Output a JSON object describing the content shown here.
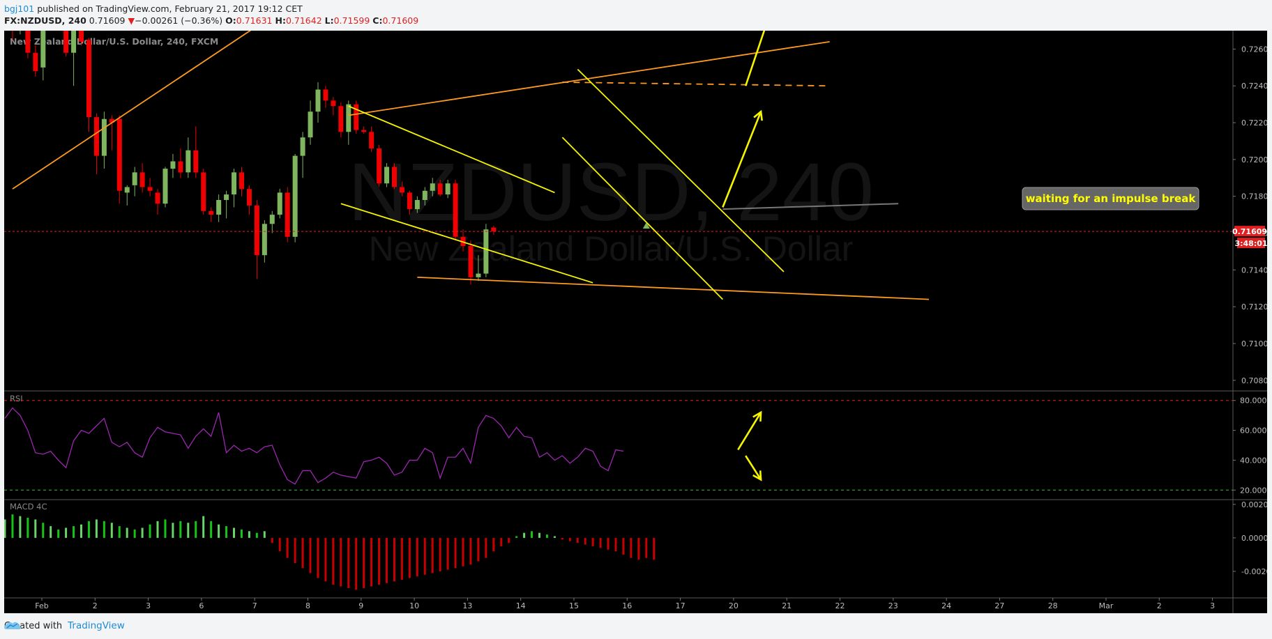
{
  "header": {
    "user": "bgj101",
    "published": "published on TradingView.com, February 21, 2017 19:12 CET",
    "symbol": "FX:NZDUSD, 240",
    "last": "0.71609",
    "change_arrow": "▼",
    "change": "−0.00261 (−0.36%)",
    "open_label": "O:",
    "open": "0.71631",
    "high_label": "H:",
    "high": "0.71642",
    "low_label": "L:",
    "low": "0.71599",
    "close_label": "C:",
    "close": "0.71609"
  },
  "footer": {
    "created_with": "Created with",
    "brand": "TradingView",
    "logo_icon": "tradingview-cloud-icon"
  },
  "colors": {
    "up": "#7fb55f",
    "down": "#f00000",
    "trend_orange": "#ff9a1f",
    "channel_yellow": "#f5f500",
    "rsi_line": "#9c27b0",
    "macd_up": "#16c416",
    "macd_up_light": "#6ad46a",
    "macd_down": "#c80000"
  },
  "chart_data": {
    "type": "candlestick",
    "title": "New Zealand Dollar/U.S. Dollar, 240, FXCM",
    "watermark_symbol": "NZDUSD, 240",
    "watermark_name": "New Zealand Dollar/U.S. Dollar",
    "annotation": "waiting for an impulse break",
    "price_axis": {
      "ticks": [
        "0.72600",
        "0.72400",
        "0.72200",
        "0.72000",
        "0.71800",
        "0.71600",
        "0.71400",
        "0.71200",
        "0.71000",
        "0.70800"
      ],
      "range": [
        0.7075,
        0.727
      ]
    },
    "last_price_label": "0.71609",
    "countdown_label": "3:48:01",
    "time_axis": [
      "Feb",
      "2",
      "3",
      "6",
      "7",
      "8",
      "9",
      "10",
      "13",
      "14",
      "15",
      "16",
      "17",
      "20",
      "21",
      "22",
      "23",
      "24",
      "27",
      "28",
      "Mar",
      "2",
      "3"
    ],
    "candles": [
      [
        0.7282,
        0.7285,
        0.7265,
        0.7273
      ],
      [
        0.7275,
        0.7284,
        0.7268,
        0.7279
      ],
      [
        0.7279,
        0.7281,
        0.7255,
        0.7258
      ],
      [
        0.7258,
        0.7262,
        0.7245,
        0.7248
      ],
      [
        0.725,
        0.729,
        0.7243,
        0.7285
      ],
      [
        0.7285,
        0.7286,
        0.7285,
        0.7286
      ],
      [
        0.7286,
        0.7288,
        0.7272,
        0.7278
      ],
      [
        0.7271,
        0.7276,
        0.7256,
        0.7258
      ],
      [
        0.7258,
        0.7282,
        0.724,
        0.7276
      ],
      [
        0.7285,
        0.7288,
        0.7262,
        0.7264
      ],
      [
        0.7265,
        0.7266,
        0.7215,
        0.7223
      ],
      [
        0.7223,
        0.7225,
        0.7192,
        0.7202
      ],
      [
        0.7202,
        0.7226,
        0.7195,
        0.7222
      ],
      [
        0.7222,
        0.7224,
        0.7205,
        0.722
      ],
      [
        0.7222,
        0.7224,
        0.7176,
        0.7183
      ],
      [
        0.7182,
        0.7186,
        0.7175,
        0.7185
      ],
      [
        0.7186,
        0.7196,
        0.718,
        0.7193
      ],
      [
        0.7193,
        0.7198,
        0.7182,
        0.7185
      ],
      [
        0.7185,
        0.719,
        0.718,
        0.7183
      ],
      [
        0.7182,
        0.7184,
        0.717,
        0.7176
      ],
      [
        0.7176,
        0.7196,
        0.7174,
        0.7195
      ],
      [
        0.7195,
        0.7203,
        0.719,
        0.7199
      ],
      [
        0.7199,
        0.7206,
        0.719,
        0.7193
      ],
      [
        0.7193,
        0.7212,
        0.719,
        0.7205
      ],
      [
        0.7205,
        0.7218,
        0.719,
        0.7193
      ],
      [
        0.7193,
        0.7195,
        0.717,
        0.7172
      ],
      [
        0.7172,
        0.7174,
        0.7166,
        0.717
      ],
      [
        0.717,
        0.7181,
        0.7166,
        0.7178
      ],
      [
        0.7178,
        0.7183,
        0.7168,
        0.7181
      ],
      [
        0.7181,
        0.7195,
        0.7174,
        0.7193
      ],
      [
        0.7193,
        0.7196,
        0.718,
        0.7184
      ],
      [
        0.7184,
        0.7186,
        0.717,
        0.7175
      ],
      [
        0.7175,
        0.7178,
        0.7135,
        0.7148
      ],
      [
        0.7148,
        0.7167,
        0.7144,
        0.7165
      ],
      [
        0.7165,
        0.7172,
        0.716,
        0.717
      ],
      [
        0.717,
        0.7184,
        0.7168,
        0.7182
      ],
      [
        0.7182,
        0.7185,
        0.7155,
        0.7158
      ],
      [
        0.7158,
        0.7203,
        0.7155,
        0.7202
      ],
      [
        0.7202,
        0.7215,
        0.719,
        0.7212
      ],
      [
        0.7212,
        0.7232,
        0.7208,
        0.7226
      ],
      [
        0.7226,
        0.7242,
        0.722,
        0.7238
      ],
      [
        0.7238,
        0.724,
        0.7228,
        0.7232
      ],
      [
        0.7232,
        0.7234,
        0.7224,
        0.7229
      ],
      [
        0.7229,
        0.7231,
        0.7212,
        0.7215
      ],
      [
        0.7215,
        0.7232,
        0.7208,
        0.723
      ],
      [
        0.723,
        0.7232,
        0.7214,
        0.7216
      ],
      [
        0.7216,
        0.7218,
        0.7214,
        0.7215
      ],
      [
        0.7215,
        0.7218,
        0.7204,
        0.7206
      ],
      [
        0.7206,
        0.7208,
        0.7185,
        0.7187
      ],
      [
        0.7187,
        0.7198,
        0.7185,
        0.7196
      ],
      [
        0.7196,
        0.7198,
        0.7184,
        0.7185
      ],
      [
        0.7185,
        0.7188,
        0.718,
        0.7182
      ],
      [
        0.7182,
        0.7183,
        0.717,
        0.7173
      ],
      [
        0.7173,
        0.718,
        0.7171,
        0.7178
      ],
      [
        0.7178,
        0.7185,
        0.7175,
        0.7183
      ],
      [
        0.7183,
        0.719,
        0.718,
        0.7187
      ],
      [
        0.7187,
        0.7189,
        0.718,
        0.7181
      ],
      [
        0.7181,
        0.7189,
        0.7179,
        0.7187
      ],
      [
        0.7187,
        0.7189,
        0.7156,
        0.7158
      ],
      [
        0.7158,
        0.7162,
        0.715,
        0.7153
      ],
      [
        0.7153,
        0.7156,
        0.7132,
        0.7136
      ],
      [
        0.7136,
        0.7148,
        0.7134,
        0.7138
      ],
      [
        0.7138,
        0.7165,
        0.7136,
        0.7162
      ],
      [
        0.7163,
        0.7164,
        0.7159,
        0.7161
      ]
    ],
    "rsi": {
      "label": "RSI",
      "ticks": [
        "80.0000",
        "60.0000",
        "40.0000",
        "20.0000"
      ],
      "range": [
        15,
        85
      ],
      "overbought": 80,
      "oversold": 20,
      "values": [
        68,
        75,
        70,
        60,
        45,
        44,
        46,
        40,
        35,
        53,
        60,
        58,
        63,
        68,
        52,
        49,
        52,
        45,
        42,
        55,
        62,
        59,
        58,
        57,
        48,
        56,
        61,
        56,
        72,
        45,
        50,
        46,
        48,
        45,
        49,
        50,
        37,
        27,
        24,
        33,
        33,
        25,
        28,
        32,
        30,
        29,
        28,
        39,
        40,
        42,
        38,
        30,
        32,
        40,
        40,
        48,
        45,
        28,
        42,
        42,
        48,
        38,
        62,
        70,
        68,
        63,
        55,
        62,
        56,
        55,
        42,
        45,
        40,
        43,
        38,
        42,
        48,
        46,
        36,
        33,
        47,
        46
      ]
    },
    "macd": {
      "label": "MACD 4C",
      "ticks": [
        "0.0020",
        "0.0000",
        "-0.0020"
      ],
      "range": [
        -0.0035,
        0.0022
      ],
      "values": [
        0.0011,
        0.0014,
        0.0013,
        0.0012,
        0.0011,
        0.0009,
        0.0007,
        0.0005,
        0.0006,
        0.0007,
        0.0008,
        0.001,
        0.0011,
        0.001,
        0.0009,
        0.0007,
        0.0006,
        0.0005,
        0.0006,
        0.0008,
        0.001,
        0.0011,
        0.0009,
        0.001,
        0.0009,
        0.001,
        0.0013,
        0.001,
        0.0008,
        0.0007,
        0.0006,
        0.0005,
        0.0004,
        0.0003,
        0.0004,
        -0.0003,
        -0.0008,
        -0.0012,
        -0.0015,
        -0.0018,
        -0.0021,
        -0.0024,
        -0.0026,
        -0.0028,
        -0.0029,
        -0.003,
        -0.0031,
        -0.003,
        -0.0029,
        -0.0028,
        -0.0027,
        -0.0026,
        -0.0025,
        -0.0024,
        -0.0023,
        -0.0022,
        -0.0021,
        -0.002,
        -0.0019,
        -0.0018,
        -0.0017,
        -0.0016,
        -0.0014,
        -0.0012,
        -0.0008,
        -0.0005,
        -0.0003,
        0.0001,
        0.0003,
        0.0004,
        0.0003,
        0.0002,
        0.0001,
        -0.0001,
        -0.0002,
        -0.0003,
        -0.0004,
        -0.0005,
        -0.0006,
        -0.0007,
        -0.0008,
        -0.001,
        -0.0012,
        -0.0013,
        -0.0012,
        -0.0013
      ]
    },
    "drawings": {
      "orange": [
        {
          "x1": 0,
          "y1": 0.7184,
          "x2": 34,
          "y2": 0.7278
        },
        {
          "x1": 44,
          "y1": 0.7224,
          "x2": 107,
          "y2": 0.7264
        },
        {
          "x1": 53,
          "y1": 0.7136,
          "x2": 120,
          "y2": 0.7124
        }
      ],
      "orange_dashed": [
        {
          "x1": 72,
          "y1": 0.7242,
          "x2": 107,
          "y2": 0.724
        }
      ],
      "yellow": [
        {
          "x1": 44,
          "y1": 0.7229,
          "x2": 71,
          "y2": 0.7182
        },
        {
          "x1": 43,
          "y1": 0.7176,
          "x2": 76,
          "y2": 0.7133
        },
        {
          "x1": 74,
          "y1": 0.7249,
          "x2": 101,
          "y2": 0.7139
        },
        {
          "x1": 72,
          "y1": 0.7212,
          "x2": 93,
          "y2": 0.7124
        }
      ],
      "annotation_leader": {
        "x1": 93,
        "y1": 0.7173,
        "x2": 116,
        "y2": 0.7176
      },
      "price_arrows": [
        {
          "x1": 93,
          "y1": 0.7174,
          "x2": 98,
          "y2": 0.7226
        },
        {
          "x1": 96,
          "y1": 0.724,
          "x2": 99,
          "y2": 0.7277
        }
      ],
      "rsi_arrows": [
        {
          "x1": 95,
          "y1": 47,
          "x2": 98,
          "y2": 72
        },
        {
          "x1": 96,
          "y1": 43,
          "x2": 98,
          "y2": 27
        }
      ],
      "triangle_marker": {
        "x": 83,
        "y": 0.7164
      }
    }
  }
}
